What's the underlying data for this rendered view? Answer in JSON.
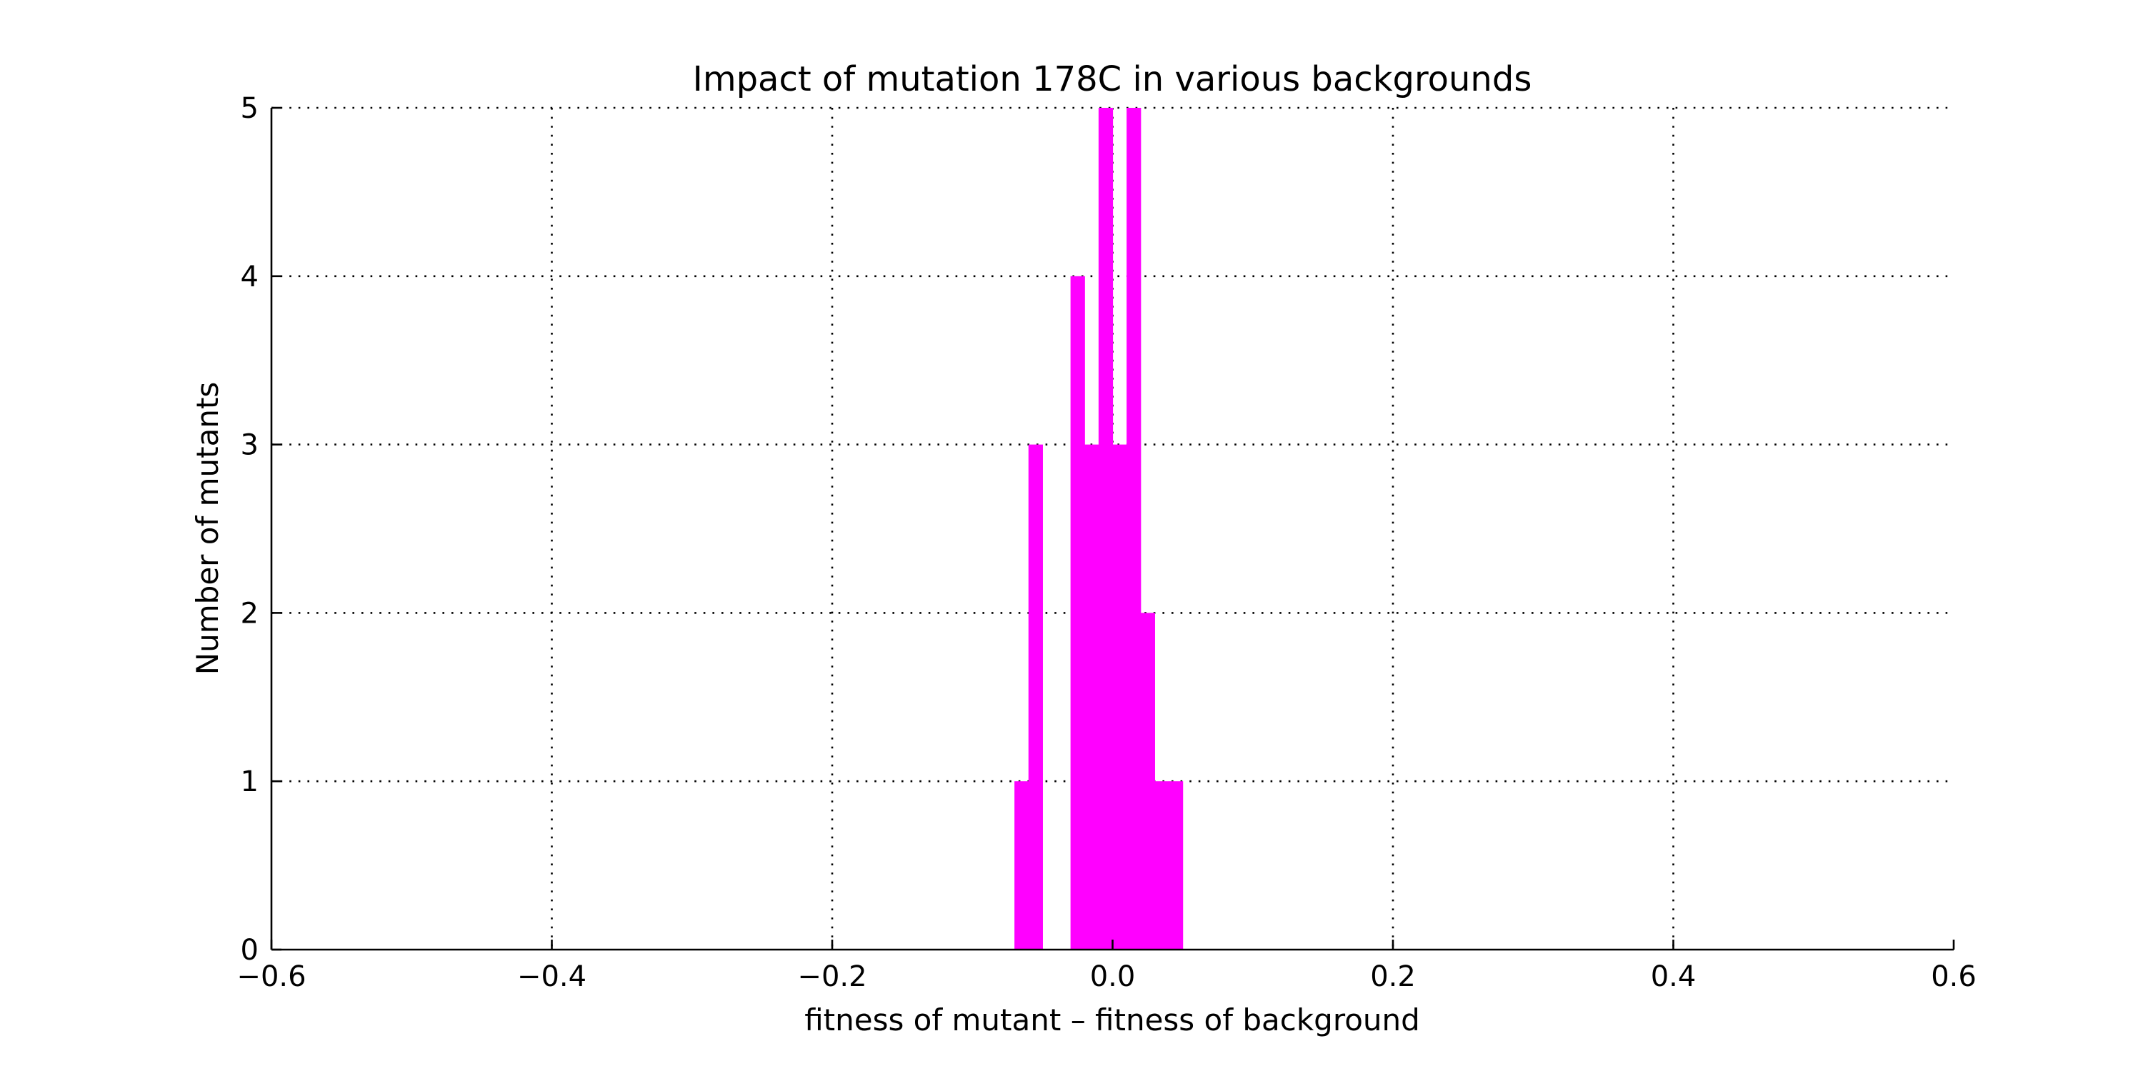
{
  "chart_data": {
    "type": "bar",
    "title": "Impact of mutation 178C in various backgrounds",
    "xlabel": "fitness of mutant  –  fitness of background",
    "ylabel": "Number of mutants",
    "xlim": [
      -0.6,
      0.6
    ],
    "ylim": [
      0,
      5
    ],
    "xticks": [
      "−0.6",
      "−0.4",
      "−0.2",
      "0.0",
      "0.2",
      "0.4",
      "0.6"
    ],
    "xtick_values": [
      -0.6,
      -0.4,
      -0.2,
      0.0,
      0.2,
      0.4,
      0.6
    ],
    "yticks": [
      "0",
      "1",
      "2",
      "3",
      "4",
      "5"
    ],
    "ytick_values": [
      0,
      1,
      2,
      3,
      4,
      5
    ],
    "grid": true,
    "bar_color": "#ff00ff",
    "bins": [
      {
        "x0": -0.07,
        "x1": -0.06,
        "count": 1
      },
      {
        "x0": -0.06,
        "x1": -0.05,
        "count": 3
      },
      {
        "x0": -0.05,
        "x1": -0.04,
        "count": 0
      },
      {
        "x0": -0.04,
        "x1": -0.03,
        "count": 0
      },
      {
        "x0": -0.03,
        "x1": -0.02,
        "count": 4
      },
      {
        "x0": -0.02,
        "x1": -0.01,
        "count": 3
      },
      {
        "x0": -0.01,
        "x1": 0.0,
        "count": 5
      },
      {
        "x0": 0.0,
        "x1": 0.01,
        "count": 3
      },
      {
        "x0": 0.01,
        "x1": 0.02,
        "count": 5
      },
      {
        "x0": 0.02,
        "x1": 0.03,
        "count": 2
      },
      {
        "x0": 0.03,
        "x1": 0.04,
        "count": 1
      },
      {
        "x0": 0.04,
        "x1": 0.05,
        "count": 1
      }
    ]
  }
}
